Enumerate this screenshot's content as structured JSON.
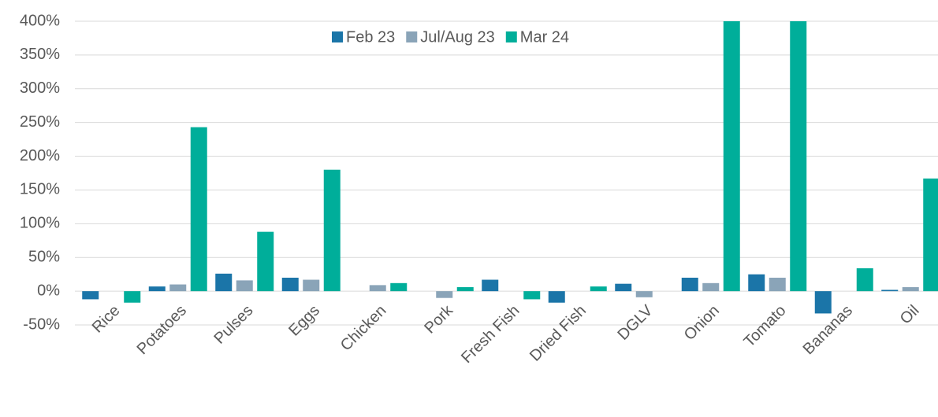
{
  "chart_data": {
    "type": "bar",
    "categories": [
      "Rice",
      "Potatoes",
      "Pulses",
      "Eggs",
      "Chicken",
      "Pork",
      "Fresh Fish",
      "Dried Fish",
      "DGLV",
      "Onion",
      "Tomato",
      "Bananas",
      "Oil"
    ],
    "series": [
      {
        "name": "Feb 23",
        "color": "#1b75a8",
        "values": [
          -12,
          7,
          26,
          20,
          0,
          0,
          17,
          -17,
          11,
          20,
          25,
          -33,
          2
        ]
      },
      {
        "name": "Jul/Aug 23",
        "color": "#8aa4b8",
        "values": [
          0,
          10,
          16,
          17,
          9,
          -10,
          0,
          0,
          -9,
          12,
          20,
          0,
          6
        ]
      },
      {
        "name": "Mar 24",
        "color": "#00ae9a",
        "values": [
          -17,
          243,
          88,
          180,
          12,
          6,
          -12,
          7,
          0,
          400,
          400,
          34,
          167
        ]
      }
    ],
    "ylim": [
      -50,
      400
    ],
    "yticks": [
      {
        "value": -50,
        "label": "-50%"
      },
      {
        "value": 0,
        "label": "0%"
      },
      {
        "value": 50,
        "label": "50%"
      },
      {
        "value": 100,
        "label": "100%"
      },
      {
        "value": 150,
        "label": "150%"
      },
      {
        "value": 200,
        "label": "200%"
      },
      {
        "value": 250,
        "label": "250%"
      },
      {
        "value": 300,
        "label": "300%"
      },
      {
        "value": 350,
        "label": "350%"
      },
      {
        "value": 400,
        "label": "400%"
      }
    ],
    "grid": true,
    "legend": "top"
  }
}
